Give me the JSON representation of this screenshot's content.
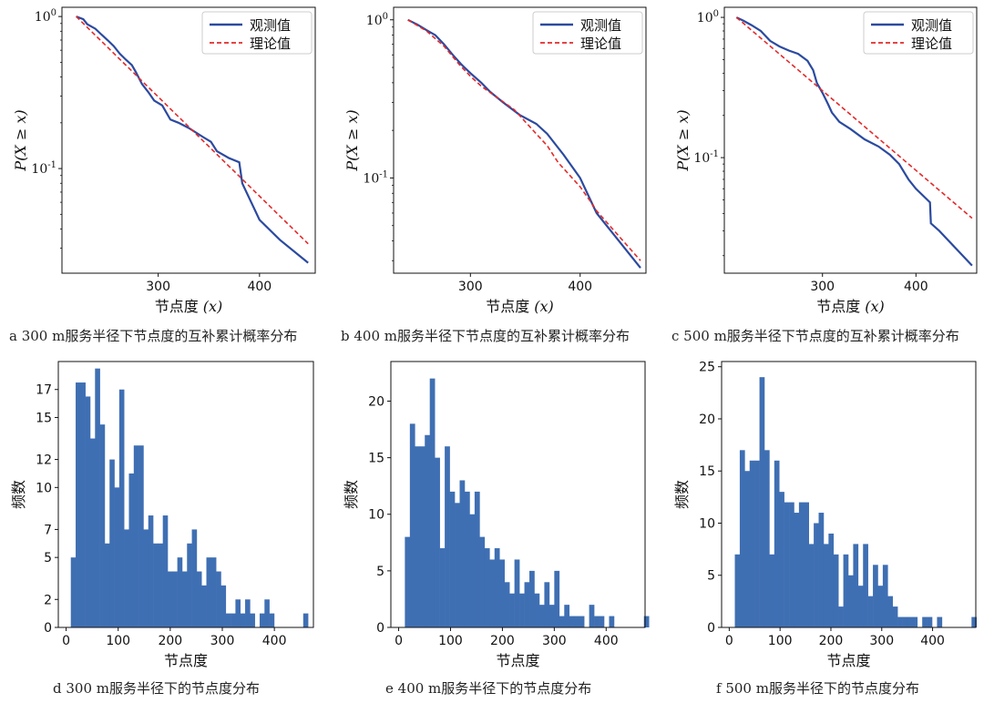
{
  "colors": {
    "observed": "#2b4aa0",
    "theory": "#e32a2a",
    "bar": "#3f6fb3",
    "axis": "#111111"
  },
  "chart_data": [
    {
      "panel": "a",
      "type": "line",
      "log_y": true,
      "caption": "a 300 m服务半径下节点度的互补累计概率分布",
      "xlabel": "节点度",
      "xlabel_var": "(x)",
      "ylabel": "P(X ≥ x)",
      "xlim": [
        205,
        455
      ],
      "ylim": [
        0.0205,
        1.15
      ],
      "xticks": [
        300,
        400
      ],
      "yticks": [
        {
          "v": 1,
          "base": "10",
          "exp": "0"
        },
        {
          "v": 0.1,
          "base": "10",
          "exp": "-1"
        }
      ],
      "legend": [
        "观测值",
        "理论值"
      ],
      "series": [
        {
          "name": "观测值",
          "x": [
            219,
            226,
            230,
            238,
            244,
            250,
            256,
            262,
            268,
            274,
            278,
            284,
            290,
            296,
            304,
            312,
            320,
            330,
            345,
            352,
            358,
            370,
            380,
            383,
            400,
            420,
            448
          ],
          "y": [
            1.0,
            0.96,
            0.89,
            0.83,
            0.76,
            0.7,
            0.64,
            0.57,
            0.52,
            0.48,
            0.43,
            0.36,
            0.32,
            0.28,
            0.26,
            0.21,
            0.2,
            0.185,
            0.16,
            0.15,
            0.13,
            0.117,
            0.11,
            0.08,
            0.046,
            0.034,
            0.024
          ]
        },
        {
          "name": "理论值",
          "x": [
            219,
            448
          ],
          "y": [
            1.0,
            0.032
          ]
        }
      ]
    },
    {
      "panel": "b",
      "type": "line",
      "log_y": true,
      "caption": "b 400 m服务半径下节点度的互补累计概率分布",
      "xlabel": "节点度",
      "xlabel_var": "(x)",
      "ylabel": "P(X ≥ x)",
      "xlim": [
        230,
        460
      ],
      "ylim": [
        0.025,
        1.2
      ],
      "xticks": [
        300,
        400
      ],
      "yticks": [
        {
          "v": 1,
          "base": "10",
          "exp": "0"
        },
        {
          "v": 0.1,
          "base": "10",
          "exp": "-1"
        }
      ],
      "legend": [
        "观测值",
        "理论值"
      ],
      "series": [
        {
          "name": "观测值",
          "x": [
            243,
            252,
            260,
            268,
            276,
            284,
            292,
            300,
            310,
            318,
            330,
            345,
            360,
            370,
            385,
            400,
            415,
            455
          ],
          "y": [
            1.0,
            0.93,
            0.86,
            0.8,
            0.7,
            0.6,
            0.52,
            0.46,
            0.4,
            0.35,
            0.3,
            0.25,
            0.22,
            0.19,
            0.14,
            0.1,
            0.06,
            0.027
          ]
        },
        {
          "name": "理论值",
          "x": [
            243,
            260,
            276,
            290,
            300,
            310,
            340,
            360,
            370,
            380,
            390,
            400,
            410,
            415,
            455
          ],
          "y": [
            1.0,
            0.85,
            0.68,
            0.52,
            0.44,
            0.38,
            0.27,
            0.19,
            0.16,
            0.125,
            0.105,
            0.088,
            0.07,
            0.062,
            0.03
          ]
        }
      ]
    },
    {
      "panel": "c",
      "type": "line",
      "log_y": true,
      "caption": "c 500 m服务半径下节点度的互补累计概率分布",
      "xlabel": "节点度",
      "xlabel_var": "(x)",
      "ylabel": "P(X ≥ x)",
      "xlim": [
        195,
        465
      ],
      "ylim": [
        0.015,
        1.18
      ],
      "xticks": [
        300,
        400
      ],
      "yticks": [
        {
          "v": 1,
          "base": "10",
          "exp": "0"
        },
        {
          "v": 0.1,
          "base": "10",
          "exp": "-1"
        }
      ],
      "legend": [
        "观测值",
        "理论值"
      ],
      "series": [
        {
          "name": "观测值",
          "x": [
            208,
            215,
            224,
            234,
            244,
            254,
            264,
            274,
            284,
            290,
            294,
            300,
            306,
            310,
            318,
            330,
            345,
            360,
            372,
            382,
            392,
            400,
            415,
            416,
            425,
            460
          ],
          "y": [
            1.0,
            0.95,
            0.88,
            0.8,
            0.68,
            0.62,
            0.58,
            0.55,
            0.49,
            0.42,
            0.34,
            0.29,
            0.24,
            0.21,
            0.18,
            0.16,
            0.135,
            0.12,
            0.105,
            0.09,
            0.07,
            0.06,
            0.048,
            0.034,
            0.03,
            0.017
          ]
        },
        {
          "name": "理论值",
          "x": [
            208,
            460
          ],
          "y": [
            1.0,
            0.037
          ]
        }
      ]
    },
    {
      "panel": "d",
      "type": "bar",
      "caption": "d 300 m服务半径下的节点度分布",
      "xlabel": "节点度",
      "ylabel": "频数",
      "xlim": [
        -15,
        475
      ],
      "ylim": [
        0,
        19
      ],
      "xticks": [
        0,
        100,
        200,
        300,
        400
      ],
      "yticks": [
        0,
        2,
        5,
        7,
        10,
        12,
        15,
        17
      ],
      "bin_width": 9.3,
      "bin_start": 9,
      "values": [
        5,
        17.5,
        17.5,
        16.5,
        13.5,
        18.5,
        14.5,
        6,
        12,
        10,
        17,
        7,
        11,
        13,
        13,
        7,
        8,
        6,
        6,
        8,
        4,
        4,
        5,
        4,
        6,
        7,
        4,
        3,
        5,
        5,
        4,
        3,
        1,
        1,
        2,
        1,
        2,
        1,
        0,
        1,
        2,
        1,
        0,
        0,
        0,
        0,
        0,
        0,
        1
      ]
    },
    {
      "panel": "e",
      "type": "bar",
      "caption": "e 400 m服务半径下的节点度分布",
      "xlabel": "节点度",
      "ylabel": "频数",
      "xlim": [
        -15,
        475
      ],
      "ylim": [
        0,
        23.5
      ],
      "xticks": [
        0,
        100,
        200,
        300,
        400
      ],
      "yticks": [
        0,
        5,
        10,
        15,
        20
      ],
      "bin_width": 9.6,
      "bin_start": 12,
      "values": [
        8,
        18,
        16,
        16,
        17,
        22,
        15,
        7,
        16,
        12,
        11,
        13,
        12,
        10,
        12,
        8,
        7,
        6,
        7,
        6,
        4,
        3,
        6,
        3,
        4,
        5,
        3,
        2,
        4,
        2,
        5,
        1,
        2,
        1,
        1,
        1,
        0,
        2,
        1,
        1,
        0,
        1,
        0,
        0,
        0,
        0,
        0,
        0,
        1
      ]
    },
    {
      "panel": "f",
      "type": "bar",
      "caption": "f 500 m服务半径下的节点度分布",
      "xlabel": "节点度",
      "ylabel": "频数",
      "xlim": [
        -15,
        485
      ],
      "ylim": [
        0,
        25.5
      ],
      "xticks": [
        0,
        100,
        200,
        300,
        400
      ],
      "yticks": [
        0,
        5,
        10,
        15,
        20,
        25
      ],
      "bin_width": 9.7,
      "bin_start": 11,
      "values": [
        7,
        17,
        15,
        16,
        16,
        24,
        17,
        7,
        16,
        13,
        12,
        12,
        11,
        12,
        12,
        8,
        10,
        11,
        8,
        9,
        7,
        2,
        7,
        5,
        8,
        4,
        8,
        3,
        6,
        4,
        6,
        3,
        2,
        1,
        1,
        1,
        1,
        0,
        1,
        1,
        0,
        1,
        0,
        0,
        0,
        0,
        0,
        0,
        1
      ]
    }
  ]
}
